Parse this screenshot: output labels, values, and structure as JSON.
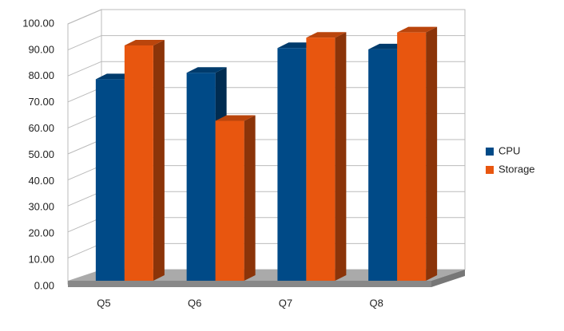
{
  "chart_data": {
    "type": "bar3d",
    "categories": [
      "Q5",
      "Q6",
      "Q7",
      "Q8"
    ],
    "series": [
      {
        "name": "CPU",
        "color": "#004a87",
        "values": [
          77.5,
          80,
          89.5,
          89
        ]
      },
      {
        "name": "Storage",
        "color": "#e8560f",
        "values": [
          90.5,
          61.5,
          93.5,
          95.5
        ]
      }
    ],
    "ylim": [
      0,
      100
    ],
    "yticks": [
      {
        "value": 0,
        "label": "0.00"
      },
      {
        "value": 10,
        "label": "10.00"
      },
      {
        "value": 20,
        "label": "20.00"
      },
      {
        "value": 30,
        "label": "30.00"
      },
      {
        "value": 40,
        "label": "40.00"
      },
      {
        "value": 50,
        "label": "50.00"
      },
      {
        "value": 60,
        "label": "60.00"
      },
      {
        "value": 70,
        "label": "70.00"
      },
      {
        "value": 80,
        "label": "80.00"
      },
      {
        "value": 90,
        "label": "90.00"
      },
      {
        "value": 100,
        "label": "100.00"
      }
    ],
    "grid": true,
    "legend": "right"
  }
}
